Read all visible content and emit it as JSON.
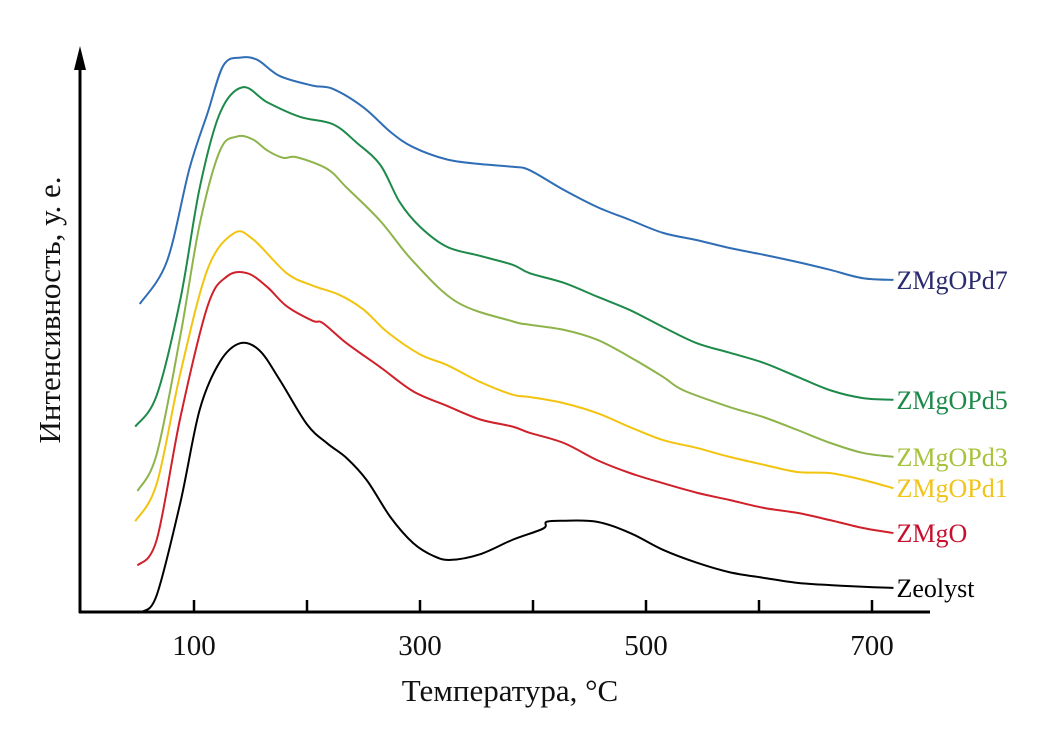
{
  "chart_data": {
    "type": "line",
    "title": "",
    "xlabel": "Температура, °C",
    "ylabel": "Интенсивность, у. е.",
    "xlim": [
      0,
      750
    ],
    "ylim": [
      0,
      100
    ],
    "x_ticks": [
      100,
      200,
      300,
      400,
      500,
      600,
      700
    ],
    "x_tick_labels": [
      "100",
      "300",
      "500",
      "700"
    ],
    "x_tick_label_values": [
      100,
      300,
      500,
      700
    ],
    "y_ticks": [],
    "grid": false,
    "legend": "labels at right end of each curve",
    "series": [
      {
        "name": "ZMgOPd7",
        "color": "#2f6db5",
        "label_color": "#2b2b6f",
        "x": [
          52,
          76,
          96,
          112,
          126,
          141,
          156,
          176,
          205,
          223,
          250,
          274,
          294,
          324,
          353,
          382,
          397,
          427,
          457,
          486,
          515,
          545,
          574,
          604,
          634,
          663,
          692,
          719
        ],
        "y": [
          55.0,
          62.6,
          79.2,
          89.1,
          97.6,
          99.0,
          98.6,
          95.7,
          94.0,
          93.4,
          90.1,
          85.7,
          83.0,
          80.8,
          80.0,
          79.5,
          78.9,
          75.4,
          72.3,
          70.0,
          67.7,
          66.4,
          65.0,
          63.8,
          62.5,
          61.1,
          59.6,
          59.3
        ]
      },
      {
        "name": "ZMgOPd5",
        "color": "#1e8a4a",
        "label_color": "#1e8a4a",
        "x": [
          48,
          67,
          88,
          105,
          123,
          143,
          165,
          194,
          223,
          244,
          265,
          282,
          300,
          324,
          353,
          382,
          397,
          427,
          457,
          486,
          515,
          545,
          574,
          604,
          634,
          663,
          692,
          719
        ],
        "y": [
          33.1,
          38.7,
          55.9,
          75.7,
          89.1,
          93.7,
          91.0,
          88.4,
          87.1,
          83.8,
          79.8,
          73.2,
          68.8,
          65.2,
          63.6,
          62.0,
          60.5,
          58.8,
          56.3,
          53.9,
          50.9,
          48.0,
          46.3,
          44.5,
          42.0,
          39.6,
          38.2,
          37.9
        ]
      },
      {
        "name": "ZMgOPd3",
        "color": "#8db44a",
        "label_color": "#a7c23b",
        "x": [
          50,
          67,
          88,
          105,
          123,
          138,
          152,
          165,
          179,
          191,
          218,
          235,
          265,
          294,
          333,
          382,
          397,
          427,
          457,
          486,
          515,
          533,
          574,
          604,
          634,
          663,
          692,
          719
        ],
        "y": [
          21.6,
          28.2,
          49.4,
          69.2,
          82.4,
          84.9,
          84.4,
          82.4,
          81.1,
          81.2,
          79.1,
          75.8,
          69.8,
          62.6,
          55.3,
          51.9,
          51.3,
          50.4,
          48.6,
          45.5,
          42.0,
          39.6,
          36.6,
          34.8,
          32.5,
          30.2,
          28.4,
          27.7
        ]
      },
      {
        "name": "ZMgOPd1",
        "color": "#f2c40f",
        "label_color": "#f0c419",
        "x": [
          48,
          67,
          88,
          112,
          135,
          152,
          182,
          205,
          229,
          250,
          271,
          300,
          324,
          353,
          382,
          397,
          427,
          457,
          486,
          515,
          545,
          574,
          604,
          634,
          663,
          692,
          719
        ],
        "y": [
          16.2,
          22.9,
          42.7,
          61.2,
          67.6,
          66.6,
          60.5,
          58.3,
          56.6,
          54.0,
          50.0,
          46.0,
          44.1,
          41.1,
          38.8,
          38.4,
          37.3,
          35.5,
          33.0,
          30.7,
          29.3,
          27.7,
          26.3,
          25.0,
          24.8,
          23.6,
          22.1
        ]
      },
      {
        "name": "ZMgO",
        "color": "#d0202a",
        "label_color": "#c8102e",
        "x": [
          50,
          67,
          88,
          112,
          129,
          147,
          165,
          182,
          205,
          214,
          235,
          265,
          294,
          324,
          353,
          382,
          397,
          427,
          457,
          486,
          515,
          545,
          574,
          604,
          634,
          663,
          692,
          719
        ],
        "y": [
          8.3,
          12.9,
          34.8,
          54.6,
          59.9,
          60.5,
          58.0,
          54.6,
          52.0,
          51.6,
          48.0,
          43.7,
          39.4,
          36.8,
          34.4,
          33.1,
          32.0,
          30.2,
          27.1,
          24.8,
          23.0,
          21.3,
          20.0,
          18.6,
          17.7,
          16.4,
          15.0,
          14.1
        ]
      },
      {
        "name": "Zeolyst",
        "color": "#000000",
        "label_color": "#000000",
        "x": [
          54,
          67,
          88,
          105,
          123,
          141,
          158,
          176,
          200,
          218,
          235,
          253,
          274,
          294,
          312,
          327,
          353,
          382,
          409,
          412,
          427,
          457,
          486,
          515,
          545,
          574,
          604,
          634,
          663,
          692,
          719
        ],
        "y": [
          0,
          3.0,
          19.6,
          36.1,
          44.7,
          48.0,
          46.7,
          41.4,
          33.5,
          30.1,
          27.5,
          23.5,
          16.9,
          12.3,
          10.0,
          9.3,
          10.3,
          12.9,
          14.9,
          16.1,
          16.3,
          16.1,
          14.1,
          11.1,
          8.8,
          7.1,
          6.1,
          5.2,
          4.8,
          4.5,
          4.3
        ]
      }
    ]
  }
}
